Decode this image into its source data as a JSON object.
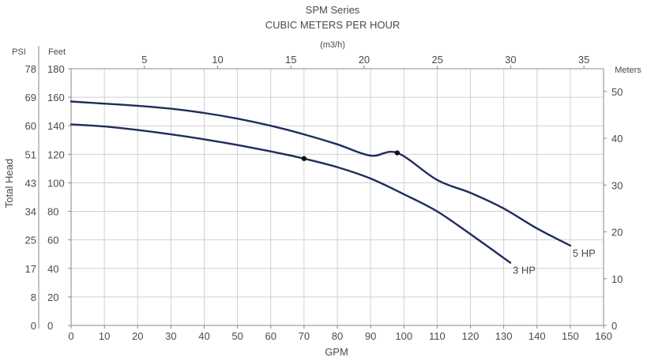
{
  "chart_data": {
    "type": "line",
    "title": "SPM Series",
    "top_axis_title": "CUBIC METERS PER HOUR",
    "top_axis_unit": "(m3/h)",
    "xlabel": "GPM",
    "ylabel": "Total Head",
    "psi_header": "PSI",
    "feet_header": "Feet",
    "meters_header": "Meters",
    "xlim": [
      0,
      160
    ],
    "ylim_feet": [
      0,
      180
    ],
    "x_ticks": [
      0,
      10,
      20,
      30,
      40,
      50,
      60,
      70,
      80,
      90,
      100,
      110,
      120,
      130,
      140,
      150,
      160
    ],
    "feet_ticks": [
      0,
      20,
      40,
      60,
      80,
      100,
      120,
      140,
      160,
      180
    ],
    "psi_ticks": [
      "0",
      "8",
      "17",
      "25",
      "34",
      "43",
      "51",
      "60",
      "69",
      "78"
    ],
    "meters_ticks": [
      0,
      10,
      20,
      30,
      40,
      50
    ],
    "m3h_ticks": [
      5,
      10,
      15,
      20,
      25,
      30,
      35
    ],
    "grid": true,
    "series": [
      {
        "name": "5 HP",
        "x": [
          0,
          10,
          20,
          30,
          40,
          50,
          60,
          70,
          80,
          90,
          98,
          110,
          120,
          130,
          140,
          150
        ],
        "y": [
          157,
          155.5,
          154,
          152,
          149,
          145,
          140,
          134,
          127,
          119,
          121,
          102,
          93,
          82,
          68,
          56
        ],
        "marker_x": 98,
        "marker_y": 121
      },
      {
        "name": "3 HP",
        "x": [
          0,
          10,
          20,
          30,
          40,
          50,
          60,
          70,
          80,
          90,
          100,
          110,
          120,
          132
        ],
        "y": [
          141,
          139.5,
          137,
          134,
          130.5,
          126.5,
          122,
          117,
          111,
          103,
          92,
          80,
          64,
          44
        ],
        "marker_x": 70,
        "marker_y": 117
      }
    ],
    "line_color": "#1f2d5c",
    "axis_color": "#888888",
    "grid_color": "#d0d0d0"
  }
}
